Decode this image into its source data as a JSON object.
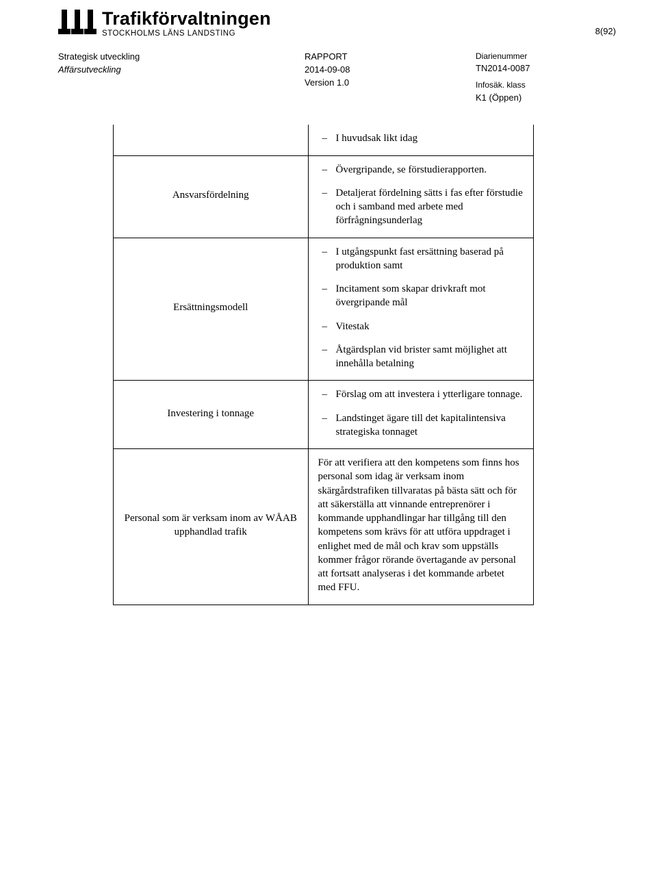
{
  "header": {
    "logo_title": "Trafikförvaltningen",
    "logo_sub": "STOCKHOLMS LÄNS LANDSTING",
    "page_number": "8(92)",
    "meta_left_line1": "Strategisk utveckling",
    "meta_left_line2": "Affärsutveckling",
    "meta_center_line1": "RAPPORT",
    "meta_center_line2": "2014-09-08",
    "meta_center_line3": "Version 1.0",
    "meta_right_label1": "Diarienummer",
    "meta_right_value1": "TN2014-0087",
    "meta_right_label2": "Infosäk. klass",
    "meta_right_value2": "K1 (Öppen)"
  },
  "table": {
    "rows": [
      {
        "left": "",
        "right_type": "list",
        "right_items": [
          "I huvudsak likt idag"
        ],
        "no_top_border": true
      },
      {
        "left": "Ansvarsfördelning",
        "right_type": "list",
        "right_items": [
          "Övergripande, se förstudierapporten.",
          "Detaljerat fördelning sätts i fas efter förstudie och i samband med arbete med förfrågningsunderlag"
        ]
      },
      {
        "left": "Ersättningsmodell",
        "right_type": "list",
        "right_items": [
          "I utgångspunkt fast ersättning baserad på produktion samt",
          "Incitament som skapar drivkraft mot övergripande mål",
          "Vitestak",
          "Åtgärdsplan vid brister samt möjlighet att innehålla betalning"
        ]
      },
      {
        "left": "Investering i tonnage",
        "right_type": "list",
        "right_items": [
          "Förslag om att investera i ytterligare tonnage.",
          "Landstinget ägare till det kapitalintensiva strategiska tonnaget"
        ]
      },
      {
        "left": "Personal som är verksam inom av WÅAB upphandlad trafik",
        "right_type": "para",
        "right_text": "För att verifiera att den kompetens som finns hos personal som idag är verksam inom skärgårdstrafiken tillvaratas på bästa sätt och för att säkerställa att vinnande entreprenörer i kommande upphandlingar har tillgång till den kompetens som krävs för att utföra uppdraget i enlighet med de mål och krav som uppställs kommer frågor rörande övertagande av personal att fortsatt analyseras i det kommande arbetet med FFU."
      }
    ]
  },
  "colors": {
    "text": "#000000",
    "border": "#000000",
    "bg": "#ffffff"
  }
}
